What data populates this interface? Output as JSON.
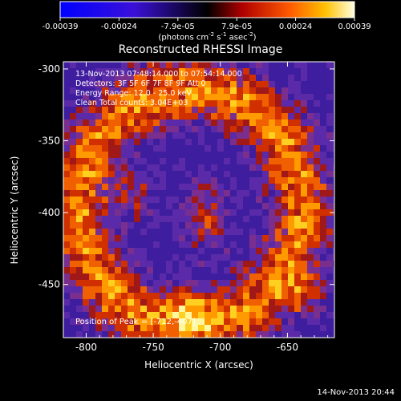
{
  "chart_data": {
    "type": "heatmap",
    "title": "Reconstructed RHESSI Image",
    "xlabel": "Heliocentric X (arcsec)",
    "ylabel": "Heliocentric Y (arcsec)",
    "xlim": [
      -817,
      -615
    ],
    "ylim": [
      -487,
      -295
    ],
    "xticks": [
      -800,
      -750,
      -700,
      -650
    ],
    "yticks": [
      -300,
      -350,
      -400,
      -450
    ],
    "colorbar": {
      "range": [
        -0.00039,
        0.00039
      ],
      "ticks": [
        "-0.00039",
        "-0.00024",
        "-7.9e-05",
        "7.9e-05",
        "0.00024",
        "0.00039"
      ],
      "unit_main": "(photons cm",
      "unit_sup1": "-2",
      "unit_mid": " s",
      "unit_sup2": "-1",
      "unit_tail": " asec",
      "unit_sup3": "-2",
      "unit_close": ")"
    },
    "annotations": {
      "time_range": "13-Nov-2013 07:48:14.000 to 07:54:14.000",
      "detectors": "Detectors: 3F 5F 6F 7F 8F 9F  Att 0",
      "energy": "Energy Range: 12.0 - 25.0 keV",
      "method": "Clean     Total counts: 3.04E+03",
      "peak": "Position of Peak = [-712,-407]"
    },
    "peak_position": [
      -712,
      -407
    ]
  },
  "footer": {
    "date": "14-Nov-2013 20:44"
  }
}
